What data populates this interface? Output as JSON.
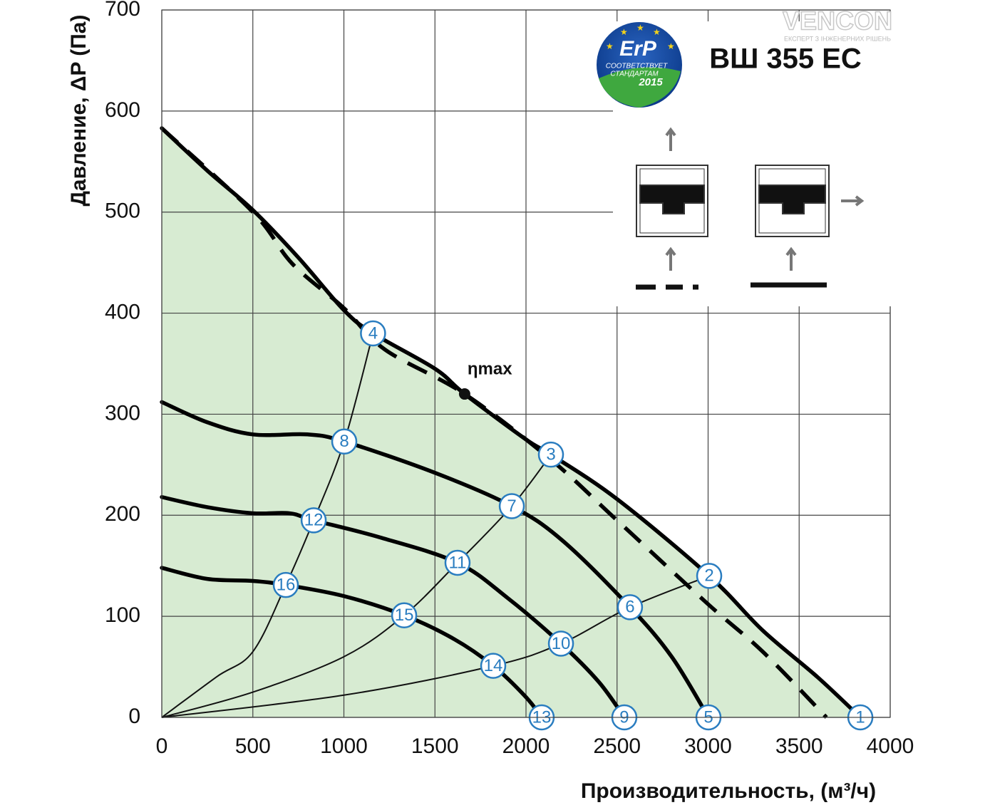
{
  "chart_data": {
    "type": "line",
    "title": "ВШ 355 ЕС",
    "logo": "VENCON",
    "logo_tagline": "ЕКСПЕРТ З ІНЖЕНЕРНИХ РІШЕНЬ",
    "badge": {
      "title": "ErP",
      "line1": "СООТВЕТСТВУЕТ",
      "line2": "СТАНДАРТАМ",
      "year": "2015"
    },
    "x_label": "Производительность, (м³/ч)",
    "y_label": "Давление, ΔP (Па)",
    "xlim": [
      0,
      4000
    ],
    "ylim": [
      0,
      700
    ],
    "xticks": [
      0,
      500,
      1000,
      1500,
      2000,
      2500,
      3000,
      3500,
      4000
    ],
    "yticks": [
      0,
      100,
      200,
      300,
      400,
      500,
      600,
      700
    ],
    "grid": true,
    "fill_color": "#d7ebd2",
    "series": [
      {
        "color": "#000000",
        "dashed": false,
        "fill": true,
        "x": [
          0,
          250,
          500,
          750,
          1000,
          1160,
          1500,
          1663,
          2000,
          2137,
          2500,
          3006,
          3300,
          3600,
          3836
        ],
        "values": [
          583,
          541,
          502,
          455,
          403,
          380,
          345,
          320,
          275,
          260,
          216,
          140,
          86,
          40,
          0
        ]
      },
      {
        "color": "#000000",
        "dashed": true,
        "fill": false,
        "x": [
          0,
          500,
          716,
          1000,
          1225,
          1663,
          2137,
          2500,
          3000,
          3300,
          3650
        ],
        "values": [
          583,
          500,
          449,
          405,
          364,
          320,
          255,
          195,
          112,
          65,
          0
        ]
      },
      {
        "color": "#000000",
        "dashed": false,
        "fill": false,
        "x": [
          0,
          250,
          500,
          800,
          1002,
          1500,
          1922,
          2200,
          2571,
          2800,
          3002
        ],
        "values": [
          312,
          292,
          280,
          280,
          273,
          242,
          209,
          175,
          109,
          60,
          0
        ]
      },
      {
        "color": "#000000",
        "dashed": false,
        "fill": false,
        "x": [
          0,
          250,
          500,
          700,
          834,
          1200,
          1624,
          1900,
          2192,
          2400,
          2540
        ],
        "values": [
          218,
          208,
          202,
          202,
          195,
          178,
          153,
          118,
          73,
          35,
          0
        ]
      },
      {
        "color": "#000000",
        "dashed": false,
        "fill": false,
        "x": [
          0,
          250,
          500,
          681,
          1000,
          1331,
          1600,
          1820,
          2000,
          2086
        ],
        "values": [
          148,
          137,
          135,
          131,
          120,
          101,
          78,
          51,
          20,
          0
        ]
      }
    ],
    "system_curves": [
      {
        "x": [
          0,
          300,
          500,
          681,
          834,
          1002,
          1160
        ],
        "values": [
          0,
          40,
          65,
          131,
          195,
          273,
          380
        ]
      },
      {
        "x": [
          0,
          500,
          1000,
          1331,
          1624,
          1922,
          2137
        ],
        "values": [
          0,
          25,
          60,
          101,
          153,
          209,
          260
        ]
      },
      {
        "x": [
          0,
          1000,
          1820,
          2192,
          2571,
          3006
        ],
        "values": [
          0,
          22,
          51,
          73,
          109,
          140
        ]
      }
    ],
    "points": [
      {
        "label": "1",
        "x": 3836,
        "y": 0
      },
      {
        "label": "2",
        "x": 3006,
        "y": 140
      },
      {
        "label": "3",
        "x": 2137,
        "y": 260
      },
      {
        "label": "4",
        "x": 1160,
        "y": 380
      },
      {
        "label": "5",
        "x": 3002,
        "y": 0
      },
      {
        "label": "6",
        "x": 2571,
        "y": 109
      },
      {
        "label": "7",
        "x": 1922,
        "y": 209
      },
      {
        "label": "8",
        "x": 1002,
        "y": 273
      },
      {
        "label": "9",
        "x": 2540,
        "y": 0
      },
      {
        "label": "10",
        "x": 2192,
        "y": 73
      },
      {
        "label": "11",
        "x": 1624,
        "y": 153
      },
      {
        "label": "12",
        "x": 834,
        "y": 195
      },
      {
        "label": "13",
        "x": 2086,
        "y": 0
      },
      {
        "label": "14",
        "x": 1820,
        "y": 51
      },
      {
        "label": "15",
        "x": 1331,
        "y": 101
      },
      {
        "label": "16",
        "x": 681,
        "y": 131
      }
    ],
    "annotation": {
      "text": "ηmax",
      "x": 1663,
      "y": 320
    }
  }
}
